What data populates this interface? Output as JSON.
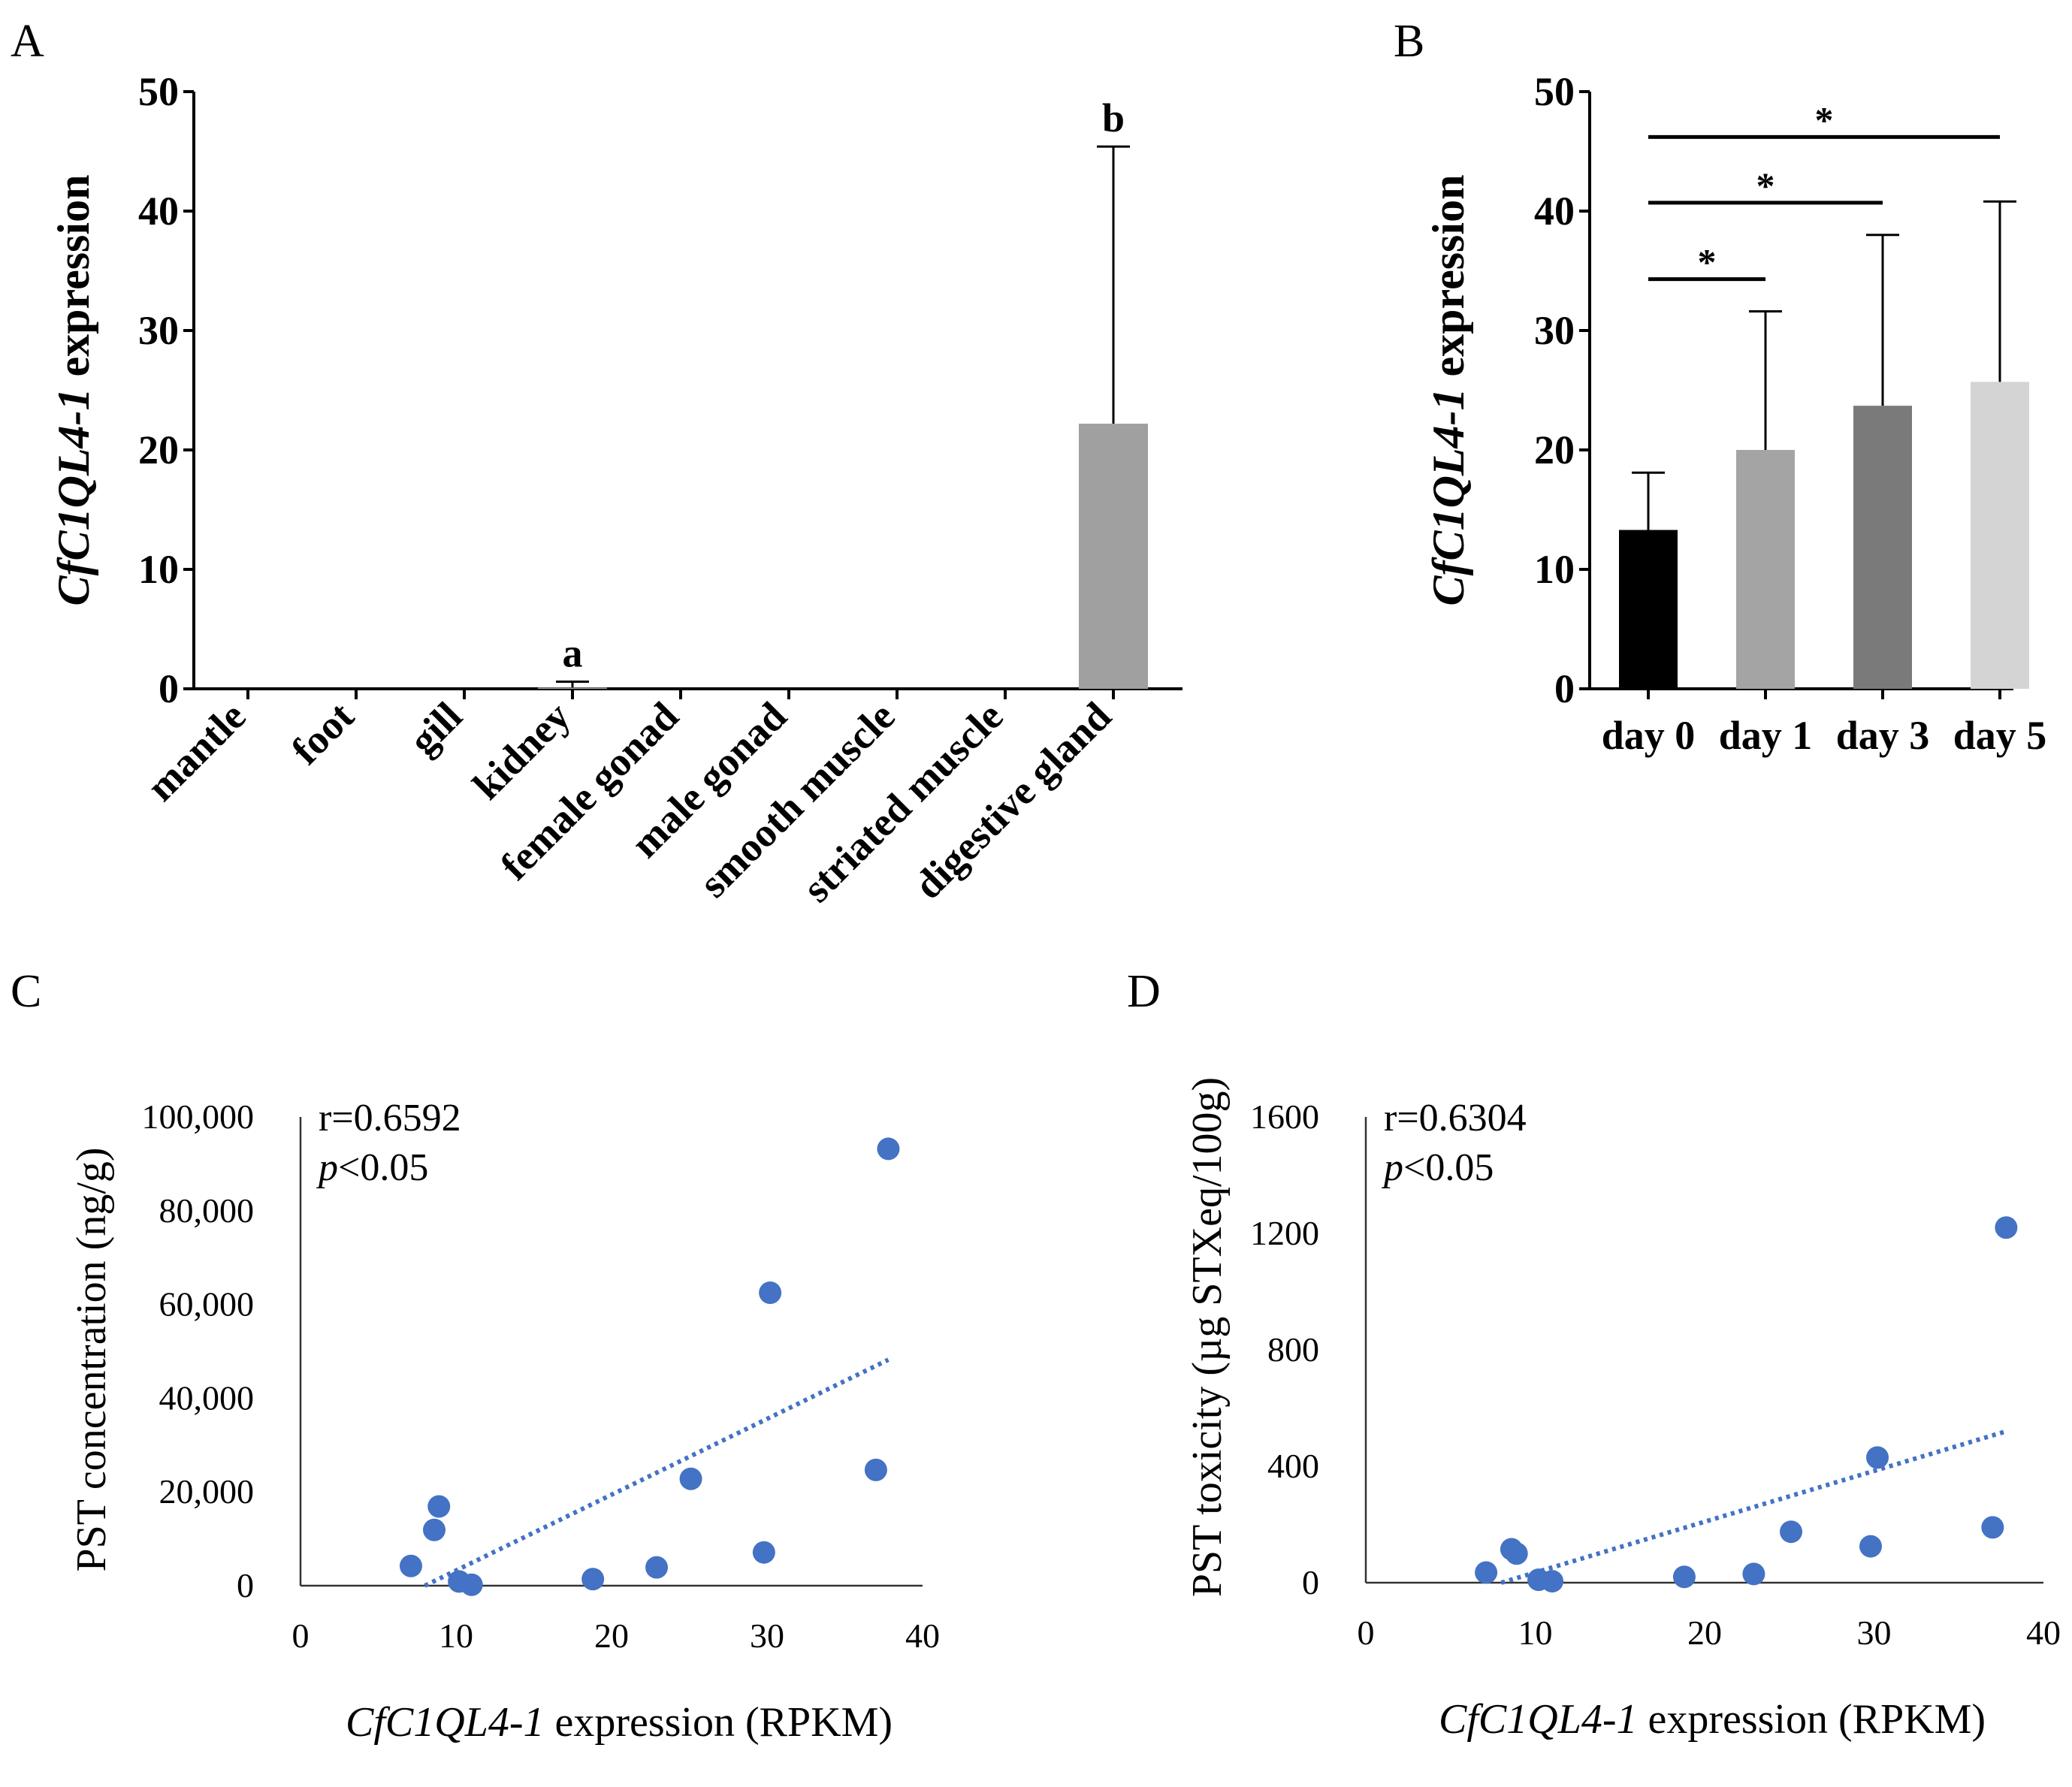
{
  "colors": {
    "scatter": "#4472c4",
    "trend": "#4472c4",
    "bar_A": "#a0a0a1",
    "bars_B": [
      "#000000",
      "#a4a4a4",
      "#7a7a7a",
      "#d4d4d4"
    ],
    "axis": "#000000"
  },
  "chart_data": [
    {
      "panel": "A",
      "type": "bar",
      "ylabel_italic": "CfC1QL4-1",
      "ylabel_rest": " expression",
      "ylim": [
        0,
        50
      ],
      "yticks": [
        0,
        10,
        20,
        30,
        40,
        50
      ],
      "categories": [
        "mantle",
        "foot",
        "gill",
        "kidney",
        "female gonad",
        "male gonad",
        "smooth muscle",
        "striated muscle",
        "digestive gland"
      ],
      "values": [
        0,
        0,
        0,
        0.1,
        0,
        0,
        0,
        0,
        22.2
      ],
      "errors": [
        0,
        0,
        0,
        0.5,
        0,
        0,
        0,
        0,
        23.2
      ],
      "annotations": [
        {
          "category_index": 3,
          "text": "a"
        },
        {
          "category_index": 8,
          "text": "b"
        }
      ]
    },
    {
      "panel": "B",
      "type": "bar",
      "ylabel_italic": "CfC1QL4-1",
      "ylabel_rest": " expression",
      "ylim": [
        0,
        50
      ],
      "yticks": [
        0,
        10,
        20,
        30,
        40,
        50
      ],
      "categories": [
        "day 0",
        "day 1",
        "day 3",
        "day 5"
      ],
      "values": [
        13.3,
        20.0,
        23.7,
        25.7
      ],
      "errors": [
        4.8,
        11.6,
        14.3,
        15.1
      ],
      "significance": [
        {
          "from": 0,
          "to": 1,
          "text": "*",
          "y": 34.3
        },
        {
          "from": 0,
          "to": 2,
          "text": "*",
          "y": 40.7
        },
        {
          "from": 0,
          "to": 3,
          "text": "*",
          "y": 46.2
        }
      ]
    },
    {
      "panel": "C",
      "type": "scatter",
      "xlabel_italic": "CfC1QL4-1",
      "xlabel_rest": " expression (RPKM)",
      "ylabel": "PST concentration (ng/g)",
      "xlim": [
        0,
        40
      ],
      "ylim": [
        0,
        100000
      ],
      "xticks": [
        0,
        10,
        20,
        30,
        40
      ],
      "yticks": [
        0,
        20000,
        40000,
        60000,
        80000,
        100000
      ],
      "ytick_labels": [
        "0",
        "20,000",
        "40,000",
        "60,000",
        "80,000",
        "100,000"
      ],
      "x": [
        7.1,
        8.6,
        8.9,
        10.2,
        11.0,
        18.8,
        22.9,
        25.1,
        29.8,
        30.2,
        37.0,
        37.8
      ],
      "y": [
        4200,
        11900,
        16900,
        900,
        200,
        1400,
        3900,
        22800,
        7100,
        62500,
        24700,
        93200
      ],
      "trendline": {
        "x": [
          8.0,
          37.8
        ],
        "y": [
          0,
          48200
        ]
      },
      "stats": {
        "r": "r=0.6592",
        "p_italic": "p",
        "p_rest": "<0.05"
      }
    },
    {
      "panel": "D",
      "type": "scatter",
      "xlabel_italic": "CfC1QL4-1",
      "xlabel_rest": " expression (RPKM)",
      "ylabel": "PST toxicity (µg STXeq/100g)",
      "xlim": [
        0,
        40
      ],
      "ylim": [
        0,
        1600
      ],
      "xticks": [
        0,
        10,
        20,
        30,
        40
      ],
      "yticks": [
        0,
        400,
        800,
        1200,
        1600
      ],
      "ytick_labels": [
        "0",
        "400",
        "800",
        "1200",
        "1600"
      ],
      "x": [
        7.1,
        8.6,
        8.9,
        10.2,
        11.0,
        18.8,
        22.9,
        25.1,
        29.8,
        30.2,
        37.0,
        37.8
      ],
      "y": [
        35,
        115,
        100,
        10,
        5,
        20,
        30,
        175,
        125,
        430,
        190,
        1220
      ],
      "trendline": {
        "x": [
          8.0,
          37.8
        ],
        "y": [
          0,
          520
        ]
      },
      "stats": {
        "r": "r=0.6304",
        "p_italic": "p",
        "p_rest": "<0.05"
      }
    }
  ]
}
